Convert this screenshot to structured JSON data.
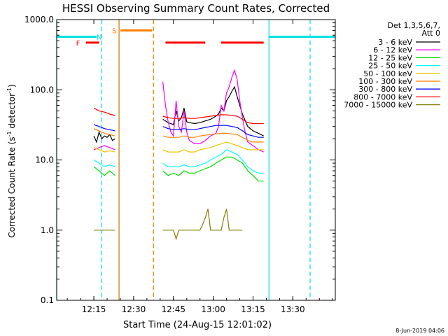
{
  "chart_data": {
    "type": "line",
    "title": "HESSI Observing Summary Count Rates, Corrected",
    "xlabel": "Start Time (24-Aug-15 12:01:02)",
    "ylabel_main": "Corrected Count Rate (s",
    "ylabel_sup1": "-1",
    "ylabel_mid": " detector",
    "ylabel_sup2": "-1",
    "ylabel_end": ")",
    "footer": "8-Jun-2019 04:06",
    "x_range_min": [
      0,
      105
    ],
    "y_log_range": [
      0.1,
      1000
    ],
    "x_ticks": [
      {
        "t": 14,
        "label": "12:15"
      },
      {
        "t": 29,
        "label": "12:30"
      },
      {
        "t": 44,
        "label": "12:45"
      },
      {
        "t": 59,
        "label": "13:00"
      },
      {
        "t": 74,
        "label": "13:15"
      },
      {
        "t": 89,
        "label": "13:30"
      }
    ],
    "y_ticks": [
      {
        "v": 0.1,
        "label": "0.1"
      },
      {
        "v": 1,
        "label": "1.0"
      },
      {
        "v": 10,
        "label": "10.0"
      },
      {
        "v": 100,
        "label": "100.0"
      },
      {
        "v": 1000,
        "label": "1000.0"
      }
    ],
    "legend_title": [
      "Det 1,3,5,6,7,",
      "Att 0"
    ],
    "legend_position": "right",
    "series": [
      {
        "name": "3 - 6 keV",
        "color": "#000000",
        "segments": [
          [
            [
              14,
              22
            ],
            [
              15,
              18
            ],
            [
              16,
              25
            ],
            [
              17,
              20
            ],
            [
              18,
              22
            ],
            [
              19,
              21
            ],
            [
              20,
              23
            ],
            [
              21,
              19
            ],
            [
              22,
              20
            ]
          ],
          [
            [
              40,
              38
            ],
            [
              42,
              34
            ],
            [
              44,
              32
            ],
            [
              45,
              50
            ],
            [
              46,
              36
            ],
            [
              47,
              40
            ],
            [
              48,
              55
            ],
            [
              49,
              35
            ],
            [
              50,
              34
            ],
            [
              52,
              33
            ],
            [
              54,
              34
            ],
            [
              56,
              36
            ],
            [
              58,
              38
            ],
            [
              59,
              40
            ],
            [
              60,
              42
            ],
            [
              61,
              45
            ],
            [
              62,
              55
            ],
            [
              63,
              50
            ],
            [
              64,
              70
            ],
            [
              65,
              80
            ],
            [
              66,
              95
            ],
            [
              67,
              110
            ],
            [
              68,
              80
            ],
            [
              69,
              60
            ],
            [
              70,
              45
            ],
            [
              72,
              30
            ],
            [
              74,
              26
            ],
            [
              76,
              24
            ],
            [
              78,
              22
            ]
          ]
        ]
      },
      {
        "name": "6 - 12 keV",
        "color": "#ff00ff",
        "segments": [
          [
            [
              14,
              14
            ],
            [
              16,
              15
            ],
            [
              18,
              16
            ],
            [
              20,
              15
            ],
            [
              22,
              14
            ]
          ],
          [
            [
              40,
              130
            ],
            [
              41,
              60
            ],
            [
              42,
              35
            ],
            [
              43,
              25
            ],
            [
              44,
              22
            ],
            [
              45,
              70
            ],
            [
              46,
              30
            ],
            [
              47,
              25
            ],
            [
              48,
              50
            ],
            [
              49,
              25
            ],
            [
              50,
              19
            ],
            [
              52,
              17
            ],
            [
              54,
              17
            ],
            [
              56,
              19
            ],
            [
              58,
              22
            ],
            [
              60,
              24
            ],
            [
              61,
              30
            ],
            [
              62,
              60
            ],
            [
              63,
              50
            ],
            [
              64,
              90
            ],
            [
              65,
              110
            ],
            [
              66,
              150
            ],
            [
              67,
              190
            ],
            [
              68,
              140
            ],
            [
              69,
              70
            ],
            [
              70,
              40
            ],
            [
              71,
              25
            ],
            [
              72,
              18
            ],
            [
              74,
              16
            ],
            [
              76,
              14
            ],
            [
              78,
              13
            ]
          ]
        ]
      },
      {
        "name": "12 - 25 keV",
        "color": "#00e000",
        "segments": [
          [
            [
              14,
              8
            ],
            [
              16,
              7
            ],
            [
              18,
              6
            ],
            [
              20,
              7
            ],
            [
              22,
              6
            ]
          ],
          [
            [
              40,
              7
            ],
            [
              42,
              6
            ],
            [
              44,
              6.5
            ],
            [
              46,
              6
            ],
            [
              48,
              7
            ],
            [
              50,
              6.5
            ],
            [
              52,
              6.5
            ],
            [
              54,
              7
            ],
            [
              56,
              7.5
            ],
            [
              58,
              8
            ],
            [
              60,
              9
            ],
            [
              62,
              10
            ],
            [
              64,
              11
            ],
            [
              66,
              11
            ],
            [
              68,
              10
            ],
            [
              70,
              9
            ],
            [
              72,
              7
            ],
            [
              74,
              6
            ],
            [
              76,
              5
            ],
            [
              78,
              5
            ]
          ]
        ]
      },
      {
        "name": "25 - 50 keV",
        "color": "#00ffff",
        "segments": [
          [
            [
              14,
              10
            ],
            [
              16,
              9
            ],
            [
              18,
              8
            ],
            [
              20,
              8.5
            ],
            [
              22,
              8
            ]
          ],
          [
            [
              40,
              9
            ],
            [
              42,
              8
            ],
            [
              44,
              8
            ],
            [
              46,
              8
            ],
            [
              48,
              8.5
            ],
            [
              50,
              8
            ],
            [
              52,
              8
            ],
            [
              54,
              8.5
            ],
            [
              56,
              9
            ],
            [
              58,
              10
            ],
            [
              60,
              11
            ],
            [
              62,
              12
            ],
            [
              64,
              14
            ],
            [
              66,
              13
            ],
            [
              68,
              12
            ],
            [
              70,
              10
            ],
            [
              72,
              8
            ],
            [
              74,
              7
            ],
            [
              76,
              6.5
            ],
            [
              78,
              6.5
            ]
          ]
        ]
      },
      {
        "name": "50 - 100 keV",
        "color": "#e8c800",
        "segments": [
          [
            [
              14,
              15
            ],
            [
              16,
              14
            ],
            [
              18,
              13
            ],
            [
              20,
              13.5
            ],
            [
              22,
              13
            ]
          ],
          [
            [
              40,
              14
            ],
            [
              42,
              13
            ],
            [
              44,
              13
            ],
            [
              46,
              13
            ],
            [
              48,
              14
            ],
            [
              50,
              13
            ],
            [
              52,
              13
            ],
            [
              54,
              14
            ],
            [
              56,
              14.5
            ],
            [
              58,
              15
            ],
            [
              60,
              16
            ],
            [
              62,
              17
            ],
            [
              64,
              18
            ],
            [
              66,
              17
            ],
            [
              68,
              16
            ],
            [
              70,
              15
            ],
            [
              72,
              14
            ],
            [
              74,
              14
            ],
            [
              76,
              14
            ],
            [
              78,
              14
            ]
          ]
        ]
      },
      {
        "name": "100 - 300 keV",
        "color": "#ff8000",
        "segments": [
          [
            [
              14,
              28
            ],
            [
              16,
              26
            ],
            [
              18,
              24
            ],
            [
              20,
              23
            ],
            [
              22,
              22
            ]
          ],
          [
            [
              40,
              22
            ],
            [
              42,
              21
            ],
            [
              44,
              21
            ],
            [
              46,
              21
            ],
            [
              48,
              22
            ],
            [
              50,
              21
            ],
            [
              52,
              21
            ],
            [
              54,
              22
            ],
            [
              56,
              22.5
            ],
            [
              58,
              23
            ],
            [
              60,
              23.5
            ],
            [
              62,
              24
            ],
            [
              64,
              24
            ],
            [
              66,
              23.5
            ],
            [
              68,
              23
            ],
            [
              70,
              21
            ],
            [
              72,
              19
            ],
            [
              74,
              18
            ],
            [
              76,
              18
            ],
            [
              78,
              18
            ]
          ]
        ]
      },
      {
        "name": "300 - 800 keV",
        "color": "#0000ff",
        "segments": [
          [
            [
              14,
              32
            ],
            [
              16,
              30
            ],
            [
              18,
              28
            ],
            [
              20,
              27
            ],
            [
              22,
              26
            ]
          ],
          [
            [
              40,
              30
            ],
            [
              42,
              28
            ],
            [
              44,
              27
            ],
            [
              46,
              27
            ],
            [
              48,
              28
            ],
            [
              50,
              27
            ],
            [
              52,
              27
            ],
            [
              54,
              28
            ],
            [
              56,
              29
            ],
            [
              58,
              30
            ],
            [
              60,
              31
            ],
            [
              62,
              31
            ],
            [
              64,
              31
            ],
            [
              66,
              30
            ],
            [
              68,
              29
            ],
            [
              70,
              26
            ],
            [
              72,
              23
            ],
            [
              74,
              22
            ],
            [
              76,
              21
            ],
            [
              78,
              21
            ]
          ]
        ]
      },
      {
        "name": "800 - 7000 keV",
        "color": "#ff0000",
        "segments": [
          [
            [
              14,
              55
            ],
            [
              16,
              50
            ],
            [
              18,
              48
            ],
            [
              20,
              45
            ],
            [
              22,
              43
            ]
          ],
          [
            [
              40,
              42
            ],
            [
              42,
              40
            ],
            [
              44,
              39
            ],
            [
              46,
              39
            ],
            [
              48,
              40
            ],
            [
              50,
              39
            ],
            [
              52,
              39
            ],
            [
              54,
              40
            ],
            [
              56,
              41
            ],
            [
              58,
              42
            ],
            [
              60,
              43
            ],
            [
              62,
              44
            ],
            [
              64,
              44
            ],
            [
              66,
              43
            ],
            [
              68,
              42
            ],
            [
              70,
              38
            ],
            [
              72,
              34
            ],
            [
              74,
              33
            ],
            [
              76,
              33
            ],
            [
              78,
              33
            ]
          ]
        ]
      },
      {
        "name": "7000 - 15000 keV",
        "color": "#808000",
        "segments": [
          [
            [
              14,
              1
            ],
            [
              22,
              1
            ]
          ],
          [
            [
              40,
              1
            ],
            [
              44,
              1
            ],
            [
              45,
              0.75
            ],
            [
              46,
              1
            ],
            [
              50,
              1
            ],
            [
              52,
              1
            ],
            [
              54,
              1
            ],
            [
              55,
              1.2
            ],
            [
              56,
              1.5
            ],
            [
              57,
              2
            ],
            [
              58,
              1
            ],
            [
              60,
              1
            ],
            [
              62,
              1
            ],
            [
              63,
              1.5
            ],
            [
              64,
              2
            ],
            [
              65,
              1
            ],
            [
              68,
              1
            ],
            [
              70,
              1
            ]
          ]
        ]
      }
    ],
    "flags": [
      {
        "label": "F",
        "color": "#ff0000",
        "segments": [
          [
            11,
            16
          ],
          [
            41,
            56
          ],
          [
            62,
            78
          ]
        ],
        "level": 470
      },
      {
        "label": "N",
        "color": "#00e0e0",
        "segments": [
          [
            0,
            15
          ],
          [
            80,
            105
          ]
        ],
        "level": 570
      },
      {
        "label": "S",
        "color": "#ff8000",
        "segments": [
          [
            24,
            36
          ]
        ],
        "level": 700
      }
    ],
    "markers": [
      {
        "t": 0,
        "color": "#00e0e0",
        "style": "solid"
      },
      {
        "t": 17,
        "color": "#00e0e0",
        "style": "dashed"
      },
      {
        "t": 23.5,
        "color": "#c87800",
        "style": "solid"
      },
      {
        "t": 36.5,
        "color": "#ff8000",
        "style": "dashed"
      },
      {
        "t": 80,
        "color": "#00e0e0",
        "style": "solid"
      },
      {
        "t": 95.5,
        "color": "#00e0e0",
        "style": "dashed"
      }
    ]
  }
}
